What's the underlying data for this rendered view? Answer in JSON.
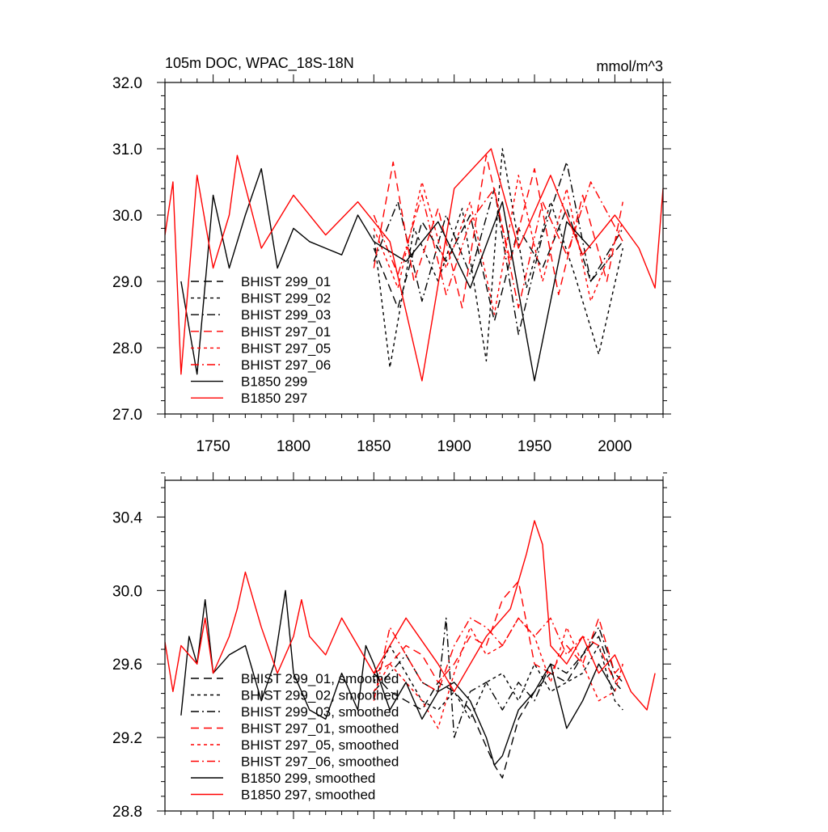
{
  "figure": {
    "title_left": "105m DOC, WPAC_18S-18N",
    "title_right": "mmol/m^3"
  },
  "chart_data": [
    {
      "type": "line",
      "title": "105m DOC, WPAC_18S-18N",
      "units": "mmol/m^3",
      "xlim": [
        1720,
        2030
      ],
      "ylim": [
        27.0,
        32.0
      ],
      "x_ticks": [
        1750,
        1800,
        1850,
        1900,
        1950,
        2000
      ],
      "y_ticks": [
        "27.0",
        "28.0",
        "29.0",
        "30.0",
        "31.0",
        "32.0"
      ],
      "x_tick_labels": [
        "1750",
        "1800",
        "1850",
        "1900",
        "1950",
        "2000"
      ],
      "y_tick_labels": [
        "27.0",
        "28.0",
        "29.0",
        "30.0",
        "31.0",
        "32.0"
      ],
      "legend_position": "lower-left",
      "grid": false,
      "series": [
        {
          "name": "BHIST 299_01",
          "color": "#000000",
          "dash": "long-dash",
          "x": [
            1850,
            1865,
            1880,
            1895,
            1910,
            1925,
            1940,
            1955,
            1970,
            1985,
            2005
          ],
          "y": [
            29.5,
            28.6,
            29.9,
            29.3,
            30.0,
            28.4,
            29.8,
            29.2,
            30.1,
            29.0,
            29.6
          ]
        },
        {
          "name": "BHIST 299_02",
          "color": "#000000",
          "dash": "short-dash",
          "x": [
            1850,
            1860,
            1875,
            1890,
            1905,
            1920,
            1930,
            1945,
            1960,
            1975,
            1990,
            2005
          ],
          "y": [
            29.7,
            27.7,
            29.8,
            29.0,
            30.1,
            27.8,
            31.0,
            28.9,
            30.2,
            29.1,
            27.9,
            29.5
          ]
        },
        {
          "name": "BHIST 299_03",
          "color": "#000000",
          "dash": "dash-dot",
          "x": [
            1850,
            1865,
            1880,
            1895,
            1910,
            1925,
            1940,
            1955,
            1970,
            1985,
            2005
          ],
          "y": [
            29.3,
            30.2,
            28.7,
            30.0,
            29.1,
            30.4,
            28.2,
            29.7,
            30.8,
            29.0,
            29.8
          ]
        },
        {
          "name": "BHIST 297_01",
          "color": "#ff0000",
          "dash": "long-dash",
          "x": [
            1850,
            1862,
            1875,
            1890,
            1905,
            1920,
            1935,
            1950,
            1965,
            1980,
            1995,
            2005
          ],
          "y": [
            29.2,
            30.8,
            29.0,
            30.1,
            28.6,
            30.9,
            29.3,
            30.7,
            28.8,
            30.3,
            29.0,
            30.2
          ]
        },
        {
          "name": "BHIST 297_05",
          "color": "#ff0000",
          "dash": "short-dash",
          "x": [
            1850,
            1865,
            1880,
            1895,
            1910,
            1925,
            1940,
            1955,
            1970,
            1985,
            2005
          ],
          "y": [
            29.8,
            28.9,
            30.5,
            29.2,
            30.2,
            28.5,
            30.6,
            29.0,
            30.4,
            28.7,
            29.9
          ]
        },
        {
          "name": "BHIST 297_06",
          "color": "#ff0000",
          "dash": "dash-dot",
          "x": [
            1850,
            1865,
            1880,
            1895,
            1910,
            1925,
            1940,
            1955,
            1970,
            1985,
            2005
          ],
          "y": [
            30.0,
            29.1,
            30.3,
            28.8,
            29.9,
            30.4,
            28.6,
            30.2,
            29.4,
            30.5,
            29.6
          ]
        },
        {
          "name": "B1850 299",
          "color": "#000000",
          "dash": "solid",
          "x": [
            1730,
            1740,
            1750,
            1760,
            1770,
            1780,
            1790,
            1800,
            1810,
            1820,
            1830,
            1840,
            1850,
            1870,
            1890,
            1910,
            1930,
            1950,
            1970,
            1985
          ],
          "y": [
            29.0,
            27.6,
            30.3,
            29.2,
            30.0,
            30.7,
            29.2,
            29.8,
            29.6,
            29.5,
            29.4,
            30.0,
            29.6,
            29.3,
            29.9,
            28.9,
            30.2,
            27.5,
            29.9,
            29.5
          ]
        },
        {
          "name": "B1850 297",
          "color": "#ff0000",
          "dash": "solid",
          "x": [
            1720,
            1725,
            1730,
            1740,
            1750,
            1760,
            1765,
            1780,
            1800,
            1820,
            1840,
            1860,
            1880,
            1900,
            1923,
            1940,
            1960,
            1980,
            2000,
            2015,
            2025,
            2030
          ],
          "y": [
            29.7,
            30.5,
            27.6,
            30.6,
            29.2,
            30.0,
            30.9,
            29.5,
            30.3,
            29.7,
            30.2,
            29.6,
            27.5,
            30.4,
            31.0,
            29.5,
            30.6,
            29.4,
            30.0,
            29.5,
            28.9,
            30.4
          ]
        }
      ]
    },
    {
      "type": "line",
      "xlim": [
        1720,
        2030
      ],
      "ylim": [
        28.8,
        30.6
      ],
      "x_ticks": [
        1750,
        1800,
        1850,
        1900,
        1950,
        2000
      ],
      "y_ticks": [
        "28.8",
        "29.2",
        "29.6",
        "30.0",
        "30.4"
      ],
      "y_tick_labels": [
        "28.8",
        "29.2",
        "29.6",
        "30.0",
        "30.4"
      ],
      "legend_position": "lower-left",
      "grid": false,
      "series": [
        {
          "name": "BHIST 299_01, smoothed",
          "color": "#000000",
          "dash": "long-dash",
          "x": [
            1850,
            1860,
            1870,
            1880,
            1890,
            1900,
            1910,
            1920,
            1925,
            1930,
            1940,
            1950,
            1960,
            1970,
            1980,
            1990,
            2000,
            2005
          ],
          "y": [
            29.55,
            29.45,
            29.4,
            29.35,
            29.5,
            29.45,
            29.35,
            29.15,
            29.05,
            28.98,
            29.3,
            29.45,
            29.55,
            29.5,
            29.65,
            29.75,
            29.5,
            29.45
          ]
        },
        {
          "name": "BHIST 299_02, smoothed",
          "color": "#000000",
          "dash": "short-dash",
          "x": [
            1850,
            1860,
            1870,
            1880,
            1890,
            1900,
            1910,
            1920,
            1930,
            1940,
            1950,
            1960,
            1970,
            1980,
            1990,
            2000,
            2005
          ],
          "y": [
            29.5,
            29.7,
            29.55,
            29.4,
            29.35,
            29.45,
            29.3,
            29.5,
            29.55,
            29.4,
            29.6,
            29.45,
            29.5,
            29.55,
            29.7,
            29.4,
            29.35
          ]
        },
        {
          "name": "BHIST 299_03, smoothed",
          "color": "#000000",
          "dash": "dash-dot",
          "x": [
            1850,
            1860,
            1870,
            1880,
            1890,
            1895,
            1900,
            1910,
            1920,
            1930,
            1940,
            1950,
            1960,
            1970,
            1980,
            1990,
            2000,
            2005
          ],
          "y": [
            29.45,
            29.55,
            29.65,
            29.5,
            29.45,
            29.85,
            29.2,
            29.45,
            29.5,
            29.35,
            29.5,
            29.4,
            29.6,
            29.55,
            29.65,
            29.8,
            29.55,
            29.5
          ]
        },
        {
          "name": "BHIST 297_01, smoothed",
          "color": "#ff0000",
          "dash": "long-dash",
          "x": [
            1850,
            1860,
            1870,
            1880,
            1890,
            1900,
            1910,
            1920,
            1930,
            1940,
            1950,
            1960,
            1970,
            1980,
            1990,
            2000,
            2005
          ],
          "y": [
            29.55,
            29.6,
            29.7,
            29.65,
            29.5,
            29.6,
            29.75,
            29.7,
            29.95,
            30.05,
            29.6,
            29.55,
            29.7,
            29.6,
            29.85,
            29.55,
            29.6
          ]
        },
        {
          "name": "BHIST 297_05, smoothed",
          "color": "#ff0000",
          "dash": "short-dash",
          "x": [
            1850,
            1860,
            1870,
            1880,
            1890,
            1900,
            1910,
            1920,
            1930,
            1940,
            1950,
            1960,
            1970,
            1980,
            1990,
            2000,
            2005
          ],
          "y": [
            29.45,
            29.6,
            29.5,
            29.4,
            29.25,
            29.55,
            29.8,
            29.65,
            29.7,
            29.85,
            29.75,
            29.5,
            29.8,
            29.6,
            29.4,
            29.45,
            29.6
          ]
        },
        {
          "name": "BHIST 297_06, smoothed",
          "color": "#ff0000",
          "dash": "dash-dot",
          "x": [
            1850,
            1860,
            1870,
            1880,
            1890,
            1900,
            1910,
            1920,
            1930,
            1940,
            1950,
            1960,
            1970,
            1980,
            1990,
            2000,
            2005
          ],
          "y": [
            29.4,
            29.8,
            29.65,
            29.5,
            29.45,
            29.7,
            29.85,
            29.8,
            29.7,
            29.85,
            29.75,
            29.85,
            29.65,
            29.75,
            29.7,
            29.5,
            29.55
          ]
        },
        {
          "name": "B1850 299, smoothed",
          "color": "#000000",
          "dash": "solid",
          "x": [
            1730,
            1735,
            1740,
            1745,
            1750,
            1760,
            1770,
            1780,
            1788,
            1795,
            1800,
            1810,
            1820,
            1830,
            1840,
            1845,
            1850,
            1860,
            1870,
            1880,
            1890,
            1900,
            1910,
            1920,
            1925,
            1930,
            1940,
            1950,
            1960,
            1970,
            1980,
            1990,
            2000
          ],
          "y": [
            29.32,
            29.75,
            29.6,
            29.95,
            29.55,
            29.65,
            29.7,
            29.4,
            29.6,
            30.0,
            29.55,
            29.35,
            29.3,
            29.55,
            29.35,
            29.7,
            29.6,
            29.35,
            29.5,
            29.3,
            29.45,
            29.5,
            29.4,
            29.2,
            29.05,
            29.1,
            29.35,
            29.45,
            29.6,
            29.25,
            29.4,
            29.6,
            29.45
          ]
        },
        {
          "name": "B1850 297, smoothed",
          "color": "#ff0000",
          "dash": "solid",
          "x": [
            1720,
            1725,
            1730,
            1740,
            1745,
            1750,
            1760,
            1765,
            1770,
            1780,
            1790,
            1800,
            1805,
            1810,
            1820,
            1830,
            1840,
            1850,
            1870,
            1890,
            1900,
            1920,
            1935,
            1945,
            1950,
            1955,
            1960,
            1970,
            1980,
            1990,
            2000,
            2010,
            2020,
            2025
          ],
          "y": [
            29.72,
            29.45,
            29.7,
            29.6,
            29.85,
            29.55,
            29.75,
            29.9,
            30.1,
            29.8,
            29.55,
            29.75,
            29.95,
            29.75,
            29.65,
            29.85,
            29.7,
            29.55,
            29.85,
            29.6,
            29.45,
            29.75,
            29.9,
            30.2,
            30.38,
            30.25,
            29.7,
            29.6,
            29.75,
            29.55,
            29.65,
            29.45,
            29.35,
            29.55
          ]
        }
      ]
    }
  ]
}
